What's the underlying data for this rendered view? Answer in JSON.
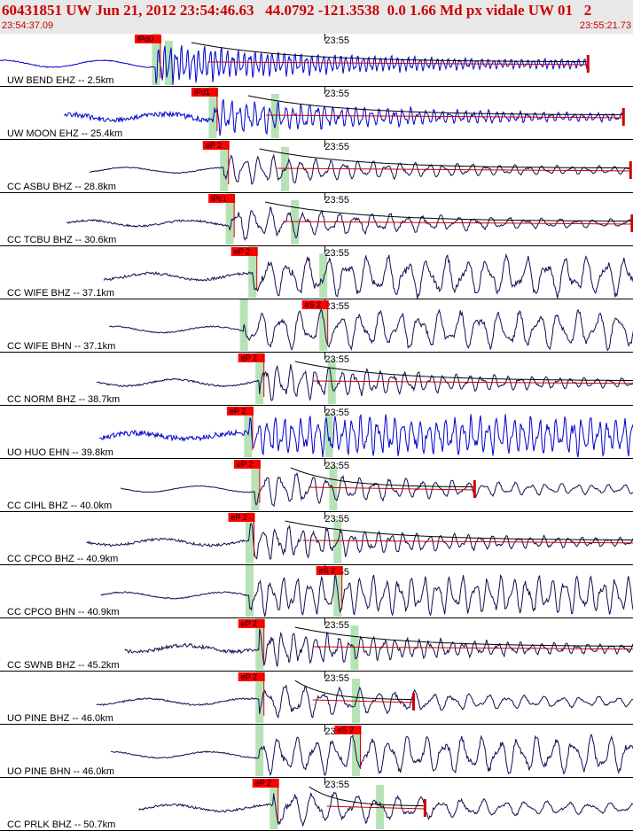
{
  "header": {
    "title": "60431851 UW Jun 21, 2012 23:54:46.63   44.0792 -121.3538  0.0 1.66 Md px vidale UW 01   2",
    "start_time": "23:54:37.09",
    "end_time": "23:55:21.73"
  },
  "colors": {
    "uw_trace": "#0000cc",
    "cc_trace": "#1a0a50",
    "pick_box": "#ff0000",
    "pick_marker": "#cc0000",
    "window_band": "#b6e3b6",
    "coda_curve": "#000000",
    "coda_fit": "#cc0000",
    "header_text": "#cc0000"
  },
  "chart_data": {
    "type": "seismogram",
    "time_range": [
      "23:54:37.09",
      "23:55:21.73"
    ],
    "minute_tick_label": "23:55",
    "traces": [
      {
        "label": "UW BEND EHZ -- 2.5km",
        "network": "UW",
        "pick": "iPd0",
        "p_time_s": 11.0,
        "s_time_s": 11.9,
        "amplitude": 0.9,
        "period_s": 0.4,
        "noise": 0.04,
        "coda": true,
        "coda_end_s": 41.5,
        "end_s": 41.5,
        "color": "uw_trace"
      },
      {
        "label": "UW MOON EHZ -- 25.4km",
        "network": "UW",
        "pick": "iPd1",
        "p_time_s": 15.0,
        "s_time_s": 19.4,
        "amplitude": 0.8,
        "period_s": 0.55,
        "noise": 0.25,
        "coda": true,
        "coda_end_s": 44.0,
        "end_s": 44.0,
        "color": "uw_trace"
      },
      {
        "label": "CC ASBU BHZ -- 28.8km",
        "network": "CC",
        "pick": "eP 2",
        "p_time_s": 15.8,
        "s_time_s": 20.1,
        "amplitude": 0.7,
        "period_s": 1.0,
        "noise": 0.06,
        "coda": true,
        "coda_end_s": 44.5,
        "end_s": 44.5,
        "color": "cc_trace"
      },
      {
        "label": "CC TCBU BHZ -- 30.6km",
        "network": "CC",
        "pick": "iPc1",
        "p_time_s": 16.2,
        "s_time_s": 20.8,
        "amplitude": 0.75,
        "period_s": 1.2,
        "noise": 0.1,
        "coda": true,
        "coda_end_s": 44.6,
        "end_s": 44.6,
        "color": "cc_trace"
      },
      {
        "label": "CC WIFE BHZ -- 37.1km",
        "network": "CC",
        "pick": "eP 2",
        "p_time_s": 17.8,
        "s_time_s": 22.8,
        "amplitude": 0.85,
        "period_s": 1.4,
        "noise": 0.12,
        "coda": false,
        "coda_end_s": 26.0,
        "end_s": 45.5,
        "color": "cc_trace"
      },
      {
        "label": "CC WIFE BHN -- 37.1km",
        "network": "CC",
        "pick": "eS 2",
        "p_time_s": 17.2,
        "s_time_s": 22.8,
        "amplitude": 0.8,
        "period_s": 1.4,
        "noise": 0.06,
        "coda": false,
        "coda_end_s": 0,
        "end_s": 45.5,
        "color": "cc_trace"
      },
      {
        "label": "CC NORM BHZ -- 38.7km",
        "network": "CC",
        "pick": "eP 2",
        "p_time_s": 18.3,
        "s_time_s": 23.4,
        "amplitude": 0.85,
        "period_s": 0.9,
        "noise": 0.08,
        "coda": true,
        "coda_end_s": 46.0,
        "end_s": 46.0,
        "color": "cc_trace"
      },
      {
        "label": "UO HUO EHN -- 39.8km",
        "network": "UO",
        "pick": "eP 2",
        "p_time_s": 17.5,
        "s_time_s": 23.2,
        "amplitude": 0.8,
        "period_s": 0.6,
        "noise": 0.25,
        "coda": false,
        "coda_end_s": 0,
        "end_s": 46.0,
        "color": "uw_trace"
      },
      {
        "label": "CC CIHL BHZ -- 40.0km",
        "network": "CC",
        "pick": "eP 2",
        "p_time_s": 18.0,
        "s_time_s": 23.5,
        "amplitude": 0.8,
        "period_s": 1.1,
        "noise": 0.03,
        "coda": true,
        "coda_end_s": 33.5,
        "end_s": 46.0,
        "color": "cc_trace"
      },
      {
        "label": "CC CPCO BHZ -- 40.9km",
        "network": "CC",
        "pick": "eP 2",
        "p_time_s": 17.6,
        "s_time_s": 23.8,
        "amplitude": 0.8,
        "period_s": 0.9,
        "noise": 0.12,
        "coda": true,
        "coda_end_s": 46.0,
        "end_s": 46.0,
        "color": "cc_trace"
      },
      {
        "label": "CC CPCO BHN -- 40.9km",
        "network": "CC",
        "pick": "eS 2",
        "p_time_s": 17.6,
        "s_time_s": 23.8,
        "amplitude": 0.8,
        "period_s": 0.9,
        "noise": 0.06,
        "coda": false,
        "coda_end_s": 0,
        "end_s": 46.0,
        "color": "cc_trace"
      },
      {
        "label": "CC SWNB BHZ -- 45.2km",
        "network": "CC",
        "pick": "eP 2",
        "p_time_s": 18.3,
        "s_time_s": 25.0,
        "amplitude": 0.8,
        "period_s": 0.8,
        "noise": 0.18,
        "coda": true,
        "coda_end_s": 47.0,
        "end_s": 47.0,
        "color": "cc_trace"
      },
      {
        "label": "UO PINE BHZ -- 46.0km",
        "network": "UO",
        "pick": "eP 2",
        "p_time_s": 18.3,
        "s_time_s": 25.1,
        "amplitude": 0.8,
        "period_s": 1.3,
        "noise": 0.08,
        "coda": true,
        "coda_end_s": 29.2,
        "end_s": 46.5,
        "color": "cc_trace"
      },
      {
        "label": "UO PINE BHN -- 46.0km",
        "network": "UO",
        "pick": "eS 2",
        "p_time_s": 18.3,
        "s_time_s": 25.1,
        "amplitude": 0.8,
        "period_s": 1.3,
        "noise": 0.06,
        "coda": false,
        "coda_end_s": 0,
        "end_s": 46.5,
        "color": "cc_trace"
      },
      {
        "label": "CC PRLK BHZ -- 50.7km",
        "network": "CC",
        "pick": "eP 2",
        "p_time_s": 19.3,
        "s_time_s": 26.8,
        "amplitude": 0.85,
        "period_s": 1.5,
        "noise": 0.1,
        "coda": true,
        "coda_end_s": 30.0,
        "end_s": 47.5,
        "color": "cc_trace"
      }
    ]
  }
}
